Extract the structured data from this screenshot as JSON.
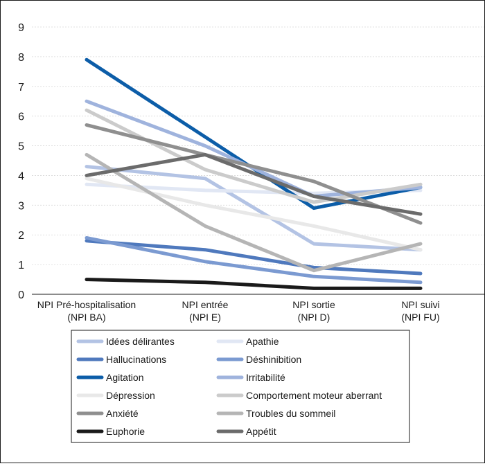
{
  "chart_data": {
    "type": "line",
    "categories": [
      [
        "NPI Pré-hospitalisation",
        "(NPI BA)"
      ],
      [
        "NPI entrée",
        "(NPI E)"
      ],
      [
        "NPI sortie",
        "(NPI D)"
      ],
      [
        "NPI suivi",
        "(NPI FU)"
      ]
    ],
    "ylim": [
      0,
      9
    ],
    "yticks": [
      0,
      1,
      2,
      3,
      4,
      5,
      6,
      7,
      8,
      9
    ],
    "grid": true,
    "legend_position": "bottom",
    "series": [
      {
        "name": "Idées délirantes",
        "color": "#b3c3e4",
        "values": [
          4.3,
          3.9,
          1.7,
          1.5
        ]
      },
      {
        "name": "Apathie",
        "color": "#e1e7f4",
        "values": [
          3.7,
          3.5,
          3.4,
          3.5
        ]
      },
      {
        "name": "Hallucinations",
        "color": "#4f79bd",
        "values": [
          1.8,
          1.5,
          0.9,
          0.7
        ]
      },
      {
        "name": "Déshinibition",
        "color": "#7b9ad1",
        "values": [
          1.9,
          1.1,
          0.6,
          0.4
        ]
      },
      {
        "name": "Agitation",
        "color": "#0c5da8",
        "values": [
          7.9,
          5.3,
          2.9,
          3.6
        ]
      },
      {
        "name": "Irritabilité",
        "color": "#9fb3dd",
        "values": [
          6.5,
          5.0,
          3.3,
          3.6
        ]
      },
      {
        "name": "Dépression",
        "color": "#e8e8e8",
        "values": [
          3.9,
          3.0,
          2.3,
          1.5
        ]
      },
      {
        "name": "Comportement moteur aberrant",
        "color": "#cbcbcb",
        "values": [
          6.2,
          4.2,
          3.1,
          3.7
        ]
      },
      {
        "name": "Anxiété",
        "color": "#8f8f8f",
        "values": [
          5.7,
          4.7,
          3.8,
          2.4
        ]
      },
      {
        "name": "Troubles du sommeil",
        "color": "#b5b5b5",
        "values": [
          4.7,
          2.3,
          0.8,
          1.7
        ]
      },
      {
        "name": "Euphorie",
        "color": "#1a1a1a",
        "values": [
          0.5,
          0.4,
          0.2,
          0.2
        ]
      },
      {
        "name": "Appétit",
        "color": "#6b6b6b",
        "values": [
          4.0,
          4.7,
          3.3,
          2.7
        ]
      }
    ]
  }
}
